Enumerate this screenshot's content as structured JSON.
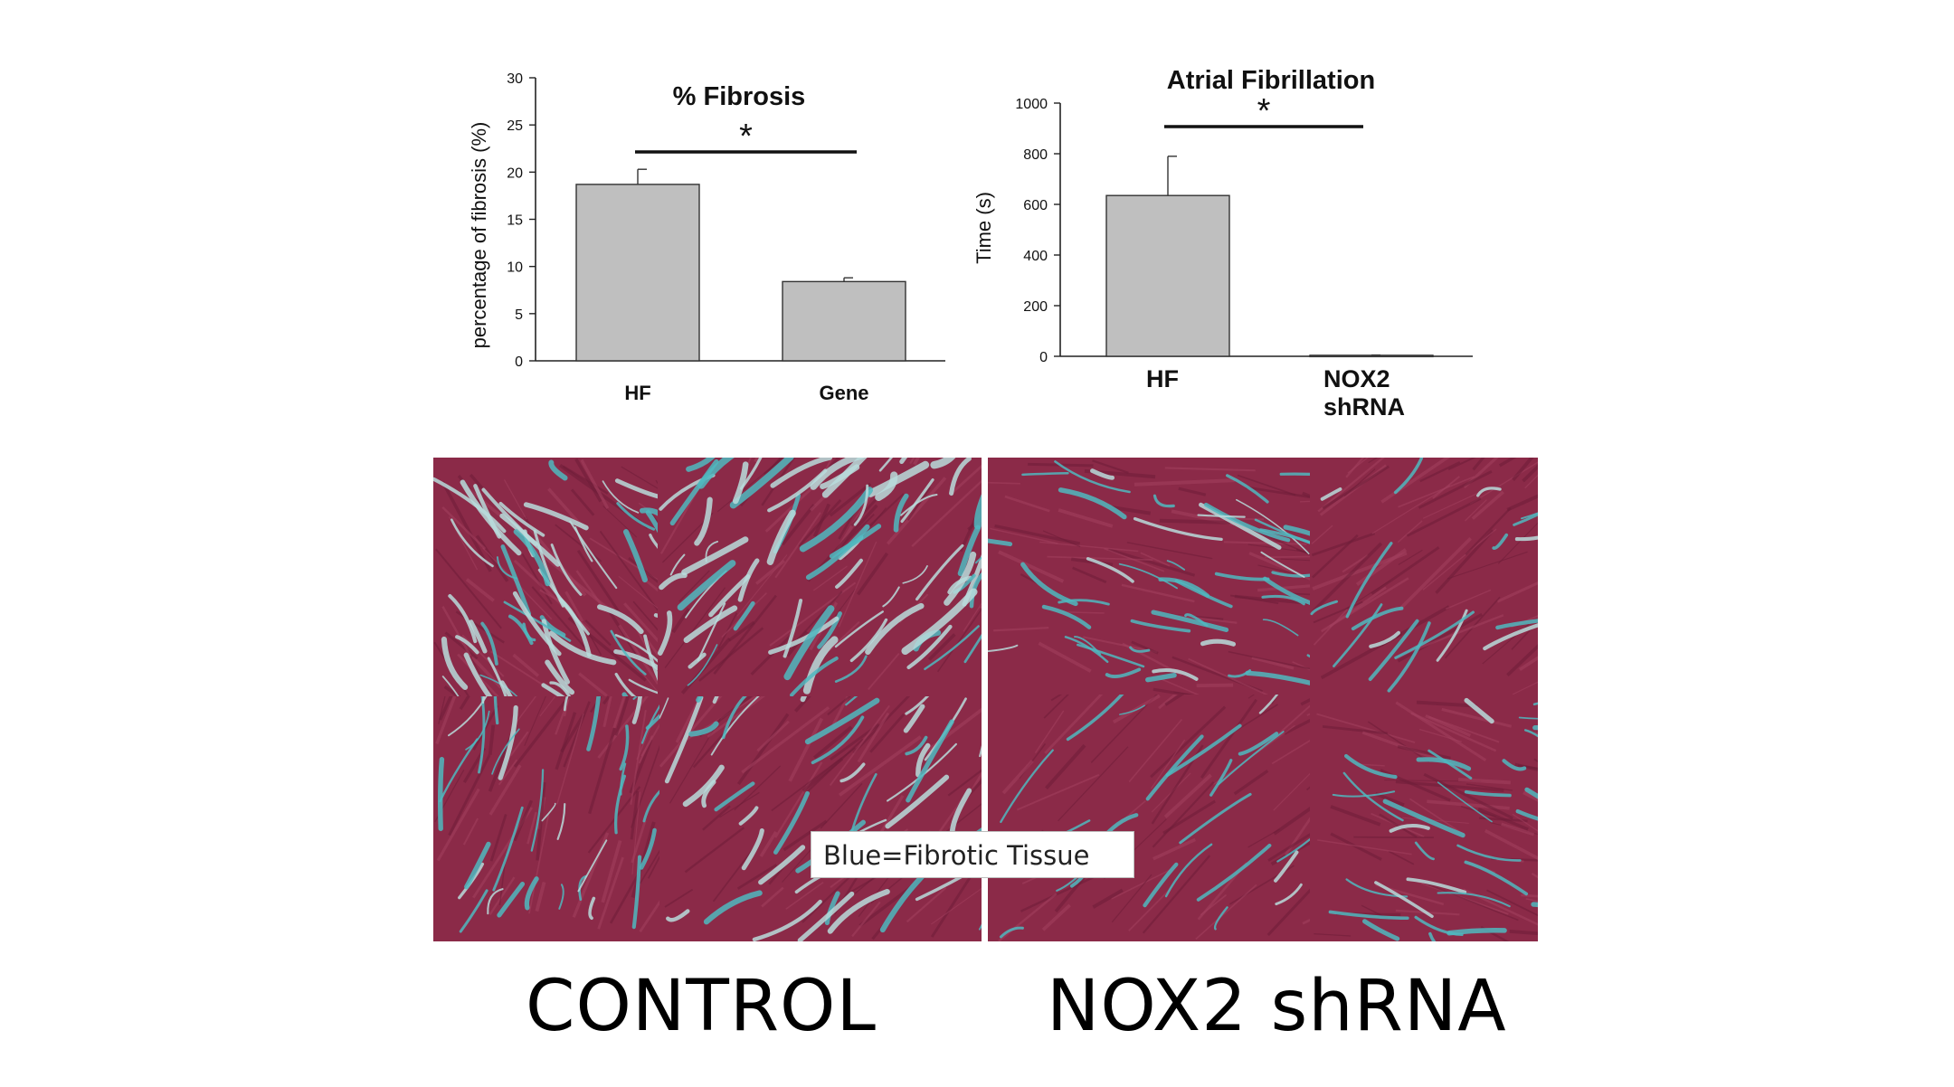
{
  "chart_data": [
    {
      "type": "bar",
      "title": "% Fibrosis",
      "ylabel": "percentage of fibrosis (%)",
      "xlabel": "",
      "categories": [
        "HF",
        "Gene"
      ],
      "values": [
        18.7,
        8.4
      ],
      "error": [
        1.6,
        0.4
      ],
      "ylim": [
        0,
        30
      ],
      "yticks": [
        0,
        5,
        10,
        15,
        20,
        25,
        30
      ],
      "significance": "*",
      "bar_color": "#bfbfbf",
      "grid": false
    },
    {
      "type": "bar",
      "title": "Atrial Fibrillation",
      "ylabel": "Time (s)",
      "xlabel": "",
      "categories": [
        "HF",
        "NOX2 shRNA"
      ],
      "values": [
        635,
        4
      ],
      "error": [
        155,
        1
      ],
      "ylim": [
        0,
        1000
      ],
      "yticks": [
        0,
        200,
        400,
        600,
        800,
        1000
      ],
      "significance": "*",
      "bar_color": "#bfbfbf",
      "grid": false
    }
  ],
  "panels": {
    "legend_text": "Blue=Fibrotic Tissue",
    "control_label": "CONTROL",
    "nox2_label": "NOX2 shRNA",
    "colors": {
      "muscle": "#8b2a48",
      "muscle_dark": "#6e1d38",
      "fibrotic": "#4fb8bf",
      "fibrotic_light": "#b9dcdc"
    }
  }
}
